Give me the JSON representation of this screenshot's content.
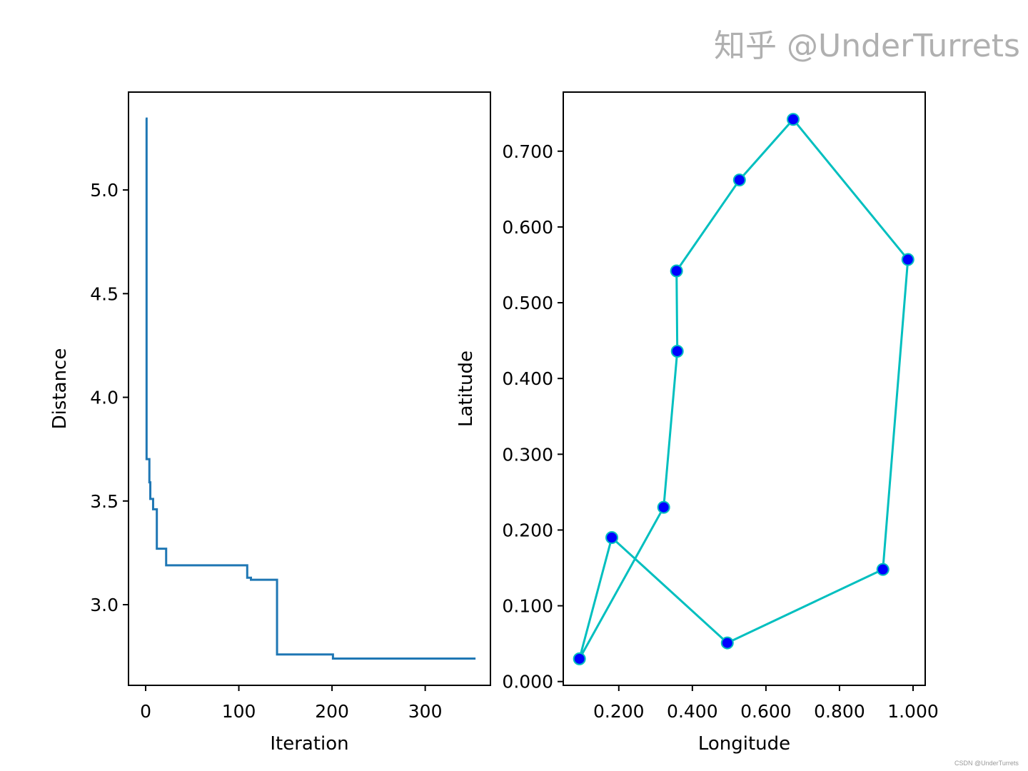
{
  "chart_data": [
    {
      "type": "line",
      "title": "",
      "xlabel": "Iteration",
      "ylabel": "Distance",
      "xlim": [
        -18.4,
        370
      ],
      "ylim": [
        2.611,
        5.472
      ],
      "xticks": [
        0,
        100,
        200,
        300
      ],
      "xtick_labels": [
        "0",
        "100",
        "200",
        "300"
      ],
      "yticks": [
        3.0,
        3.5,
        4.0,
        4.5,
        5.0
      ],
      "ytick_labels": [
        "3.0",
        "3.5",
        "4.0",
        "4.5",
        "5.0"
      ],
      "grid": false,
      "drawstyle": "steps-post",
      "color": "#1f77b4",
      "x": [
        0,
        1,
        4,
        5,
        8,
        12,
        22,
        109,
        113,
        141,
        201,
        354
      ],
      "y": [
        5.344,
        3.702,
        3.59,
        3.51,
        3.46,
        3.27,
        3.19,
        3.13,
        3.12,
        2.76,
        2.74,
        2.74
      ]
    },
    {
      "type": "line",
      "title": "",
      "xlabel": "Longitude",
      "ylabel": "Latitude",
      "xlim": [
        0.049,
        1.033
      ],
      "ylim": [
        -0.005,
        0.778
      ],
      "xticks": [
        0.2,
        0.4,
        0.6,
        0.8,
        1.0
      ],
      "xtick_labels": [
        "0.200",
        "0.400",
        "0.600",
        "0.800",
        "1.000"
      ],
      "yticks": [
        0.0,
        0.1,
        0.2,
        0.3,
        0.4,
        0.5,
        0.6,
        0.7
      ],
      "ytick_labels": [
        "0.000",
        "0.100",
        "0.200",
        "0.300",
        "0.400",
        "0.500",
        "0.600",
        "0.700"
      ],
      "grid": false,
      "line_color": "#00bfbf",
      "marker_color": "#0000ff",
      "marker_edge_color": "#00bfbf",
      "closed_route": true,
      "x": [
        0.093,
        0.181,
        0.495,
        0.918,
        0.986,
        0.674,
        0.528,
        0.357,
        0.359,
        0.322,
        0.093
      ],
      "y": [
        0.03,
        0.19,
        0.051,
        0.148,
        0.557,
        0.742,
        0.662,
        0.542,
        0.436,
        0.23,
        0.03
      ]
    }
  ],
  "watermark": "知乎 @UnderTurrets",
  "source_tag": "CSDN @UnderTurrets"
}
